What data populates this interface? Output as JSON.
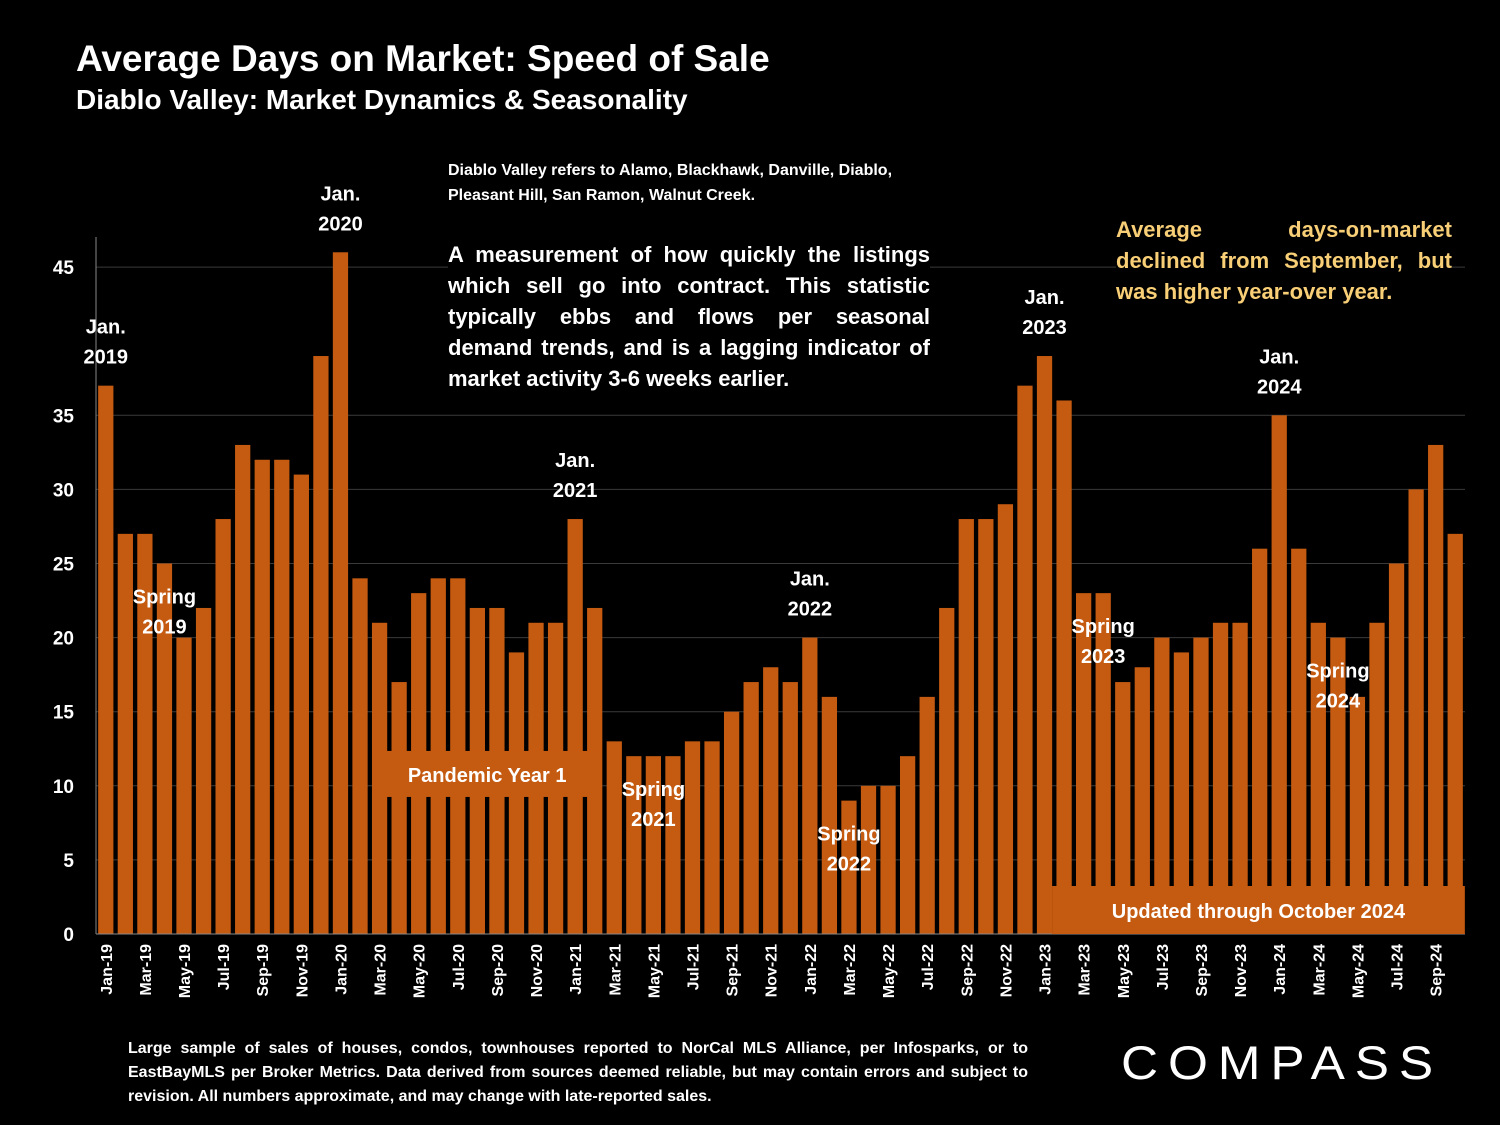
{
  "header": {
    "title": "Average Days on Market:  Speed of Sale",
    "subtitle": "Diablo Valley: Market Dynamics & Seasonality"
  },
  "notes": {
    "region": "Diablo Valley refers to Alamo, Blackhawk, Danville, Diablo, Pleasant Hill, San Ramon, Walnut Creek.",
    "description": "A measurement of how quickly the listings which sell go into contract. This statistic typically ebbs and flows per seasonal demand trends, and is a lagging indicator of market activity 3-6 weeks earlier.",
    "highlight": "Average days-on-market declined from September, but was higher year-over year.",
    "highlight_color": "#f8cf76"
  },
  "footnote": "Large sample of sales of houses, condos, townhouses reported to NorCal MLS Alliance, per Infosparks, or to EastBayMLS per Broker Metrics. Data derived from sources deemed reliable, but may contain errors and subject to revision. All numbers approximate, and may change with late-reported sales.",
  "logo": {
    "text": "COMPASS"
  },
  "colors": {
    "bar": "#c55a11",
    "background": "#000000",
    "text": "#ffffff",
    "grid": "#3a3a3a"
  },
  "chart_data": {
    "type": "bar",
    "title": "Average Days on Market:  Speed of Sale",
    "ylim": [
      0,
      47
    ],
    "yticks": [
      0,
      5,
      10,
      15,
      20,
      25,
      30,
      35,
      45
    ],
    "grid": true,
    "categories": [
      "Jan-19",
      "Feb-19",
      "Mar-19",
      "Apr-19",
      "May-19",
      "Jun-19",
      "Jul-19",
      "Aug-19",
      "Sep-19",
      "Oct-19",
      "Nov-19",
      "Dec-19",
      "Jan-20",
      "Feb-20",
      "Mar-20",
      "Apr-20",
      "May-20",
      "Jun-20",
      "Jul-20",
      "Aug-20",
      "Sep-20",
      "Oct-20",
      "Nov-20",
      "Dec-20",
      "Jan-21",
      "Feb-21",
      "Mar-21",
      "Apr-21",
      "May-21",
      "Jun-21",
      "Jul-21",
      "Aug-21",
      "Sep-21",
      "Oct-21",
      "Nov-21",
      "Dec-21",
      "Jan-22",
      "Feb-22",
      "Mar-22",
      "Apr-22",
      "May-22",
      "Jun-22",
      "Jul-22",
      "Aug-22",
      "Sep-22",
      "Oct-22",
      "Nov-22",
      "Dec-22",
      "Jan-23",
      "Feb-23",
      "Mar-23",
      "Apr-23",
      "May-23",
      "Jun-23",
      "Jul-23",
      "Aug-23",
      "Sep-23",
      "Oct-23",
      "Nov-23",
      "Dec-23",
      "Jan-24",
      "Feb-24",
      "Mar-24",
      "Apr-24",
      "May-24",
      "Jun-24",
      "Jul-24",
      "Aug-24",
      "Sep-24",
      "Oct-24"
    ],
    "tick_labels": [
      "Jan-19",
      "Mar-19",
      "May-19",
      "Jul-19",
      "Sep-19",
      "Nov-19",
      "Jan-20",
      "Mar-20",
      "May-20",
      "Jul-20",
      "Sep-20",
      "Nov-20",
      "Jan-21",
      "Mar-21",
      "May-21",
      "Jul-21",
      "Sep-21",
      "Nov-21",
      "Jan-22",
      "Mar-22",
      "May-22",
      "Jul-22",
      "Sep-22",
      "Nov-22",
      "Jan-23",
      "Mar-23",
      "May-23",
      "Jul-23",
      "Sep-23",
      "Nov-23",
      "Jan-24",
      "Mar-24",
      "May-24",
      "Jul-24",
      "Sep-24"
    ],
    "values": [
      37,
      27,
      27,
      25,
      20,
      22,
      28,
      33,
      32,
      32,
      31,
      39,
      46,
      24,
      21,
      17,
      23,
      24,
      24,
      22,
      22,
      19,
      21,
      21,
      28,
      22,
      13,
      12,
      12,
      12,
      13,
      13,
      15,
      17,
      18,
      17,
      20,
      16,
      9,
      10,
      10,
      12,
      16,
      22,
      28,
      28,
      29,
      37,
      39,
      36,
      23,
      23,
      17,
      18,
      20,
      19,
      20,
      21,
      21,
      26,
      35,
      26,
      21,
      20,
      16,
      21,
      25,
      30,
      33,
      27
    ],
    "annotations": [
      {
        "text": "Jan. 2019",
        "at": "Jan-19"
      },
      {
        "text": "Jan. 2020",
        "at": "Jan-20"
      },
      {
        "text": "Jan. 2021",
        "at": "Jan-21"
      },
      {
        "text": "Jan. 2022",
        "at": "Jan-22"
      },
      {
        "text": "Jan. 2023",
        "at": "Jan-23"
      },
      {
        "text": "Jan. 2024",
        "at": "Jan-24"
      },
      {
        "text": "Spring 2019",
        "at": "Apr-19"
      },
      {
        "text": "Spring 2021",
        "at": "May-21"
      },
      {
        "text": "Spring 2022",
        "at": "Mar-22"
      },
      {
        "text": "Spring 2023",
        "at": "Apr-23"
      },
      {
        "text": "Spring 2024",
        "at": "Apr-24"
      }
    ],
    "callouts": [
      {
        "text": "Pandemic Year 1",
        "from": "Mar-20",
        "to": "Feb-21"
      },
      {
        "text": "Updated through October 2024",
        "from": "Feb-23",
        "to": "Oct-24"
      }
    ]
  }
}
